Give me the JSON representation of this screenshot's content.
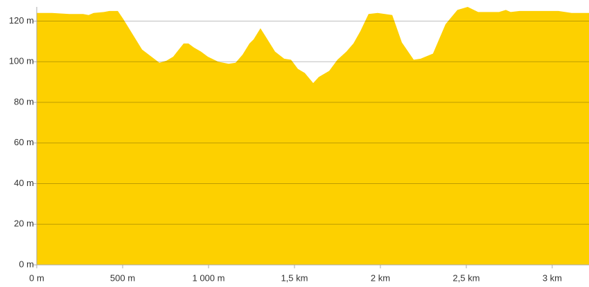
{
  "chart_data": {
    "type": "area",
    "color": "#fdd000",
    "grid": true,
    "x": [
      0,
      89,
      190,
      270,
      302,
      331,
      391,
      423,
      472,
      504,
      613,
      714,
      754,
      794,
      855,
      883,
      915,
      956,
      996,
      1056,
      1117,
      1157,
      1198,
      1238,
      1262,
      1302,
      1339,
      1387,
      1440,
      1480,
      1520,
      1560,
      1609,
      1641,
      1702,
      1750,
      1802,
      1843,
      1883,
      1931,
      1984,
      2069,
      2125,
      2194,
      2234,
      2306,
      2379,
      2448,
      2508,
      2569,
      2690,
      2730,
      2758,
      2810,
      2891,
      3036,
      3113,
      3214
    ],
    "values": [
      124,
      124,
      123.5,
      123.5,
      123,
      124,
      124.5,
      125,
      125,
      121,
      106,
      99.5,
      100.5,
      102.5,
      109,
      109,
      107,
      105,
      102.5,
      100,
      99,
      99.5,
      103.5,
      109,
      111,
      116.5,
      111.5,
      105,
      101.5,
      101,
      96.5,
      94.5,
      89.5,
      92.5,
      95.5,
      101,
      105,
      109,
      115,
      123.5,
      124,
      123,
      109.5,
      101,
      101.5,
      104,
      118.5,
      125.5,
      127,
      124.5,
      124.5,
      125.5,
      124.5,
      125,
      125,
      125,
      124,
      124
    ],
    "xlim": [
      0,
      3214
    ],
    "ylim": [
      0,
      127
    ],
    "xticks": [
      {
        "value": 0,
        "label": "0 m"
      },
      {
        "value": 500,
        "label": "500 m"
      },
      {
        "value": 1000,
        "label": "1 000 m"
      },
      {
        "value": 1500,
        "label": "1,5 km"
      },
      {
        "value": 2000,
        "label": "2 km"
      },
      {
        "value": 2500,
        "label": "2,5 km"
      },
      {
        "value": 3000,
        "label": "3 km"
      }
    ],
    "yticks": [
      {
        "value": 0,
        "label": "0 m"
      },
      {
        "value": 20,
        "label": "20 m"
      },
      {
        "value": 40,
        "label": "40 m"
      },
      {
        "value": 60,
        "label": "60 m"
      },
      {
        "value": 80,
        "label": "80 m"
      },
      {
        "value": 100,
        "label": "100 m"
      },
      {
        "value": 120,
        "label": "120 m"
      }
    ]
  }
}
